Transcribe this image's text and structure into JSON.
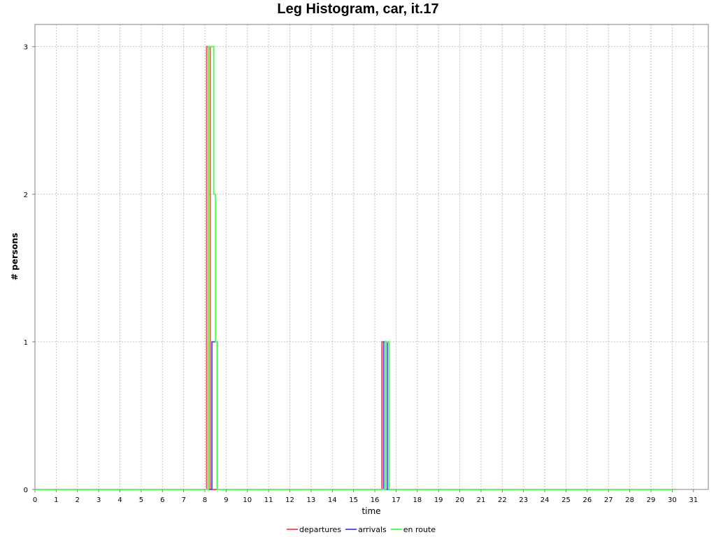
{
  "chart_data": {
    "type": "line",
    "title": "Leg Histogram, car, it.17",
    "xlabel": "time",
    "ylabel": "# persons",
    "xlim": [
      0,
      31.7
    ],
    "ylim": [
      0,
      3.15
    ],
    "x_ticks": [
      0,
      1,
      2,
      3,
      4,
      5,
      6,
      7,
      8,
      9,
      10,
      11,
      12,
      13,
      14,
      15,
      16,
      17,
      18,
      19,
      20,
      21,
      22,
      23,
      24,
      25,
      26,
      27,
      28,
      29,
      30,
      31
    ],
    "y_ticks": [
      0,
      1,
      2,
      3
    ],
    "grid": true,
    "legend_position": "bottom",
    "series": [
      {
        "name": "departures",
        "color": "#ff5555",
        "step": true,
        "points": [
          [
            0,
            0
          ],
          [
            8.083,
            0
          ],
          [
            8.083,
            3
          ],
          [
            8.25,
            3
          ],
          [
            8.25,
            0
          ],
          [
            16.333,
            0
          ],
          [
            16.333,
            1
          ],
          [
            16.667,
            1
          ],
          [
            16.667,
            0
          ],
          [
            30.15,
            0
          ]
        ]
      },
      {
        "name": "arrivals",
        "color": "#5555ff",
        "step": true,
        "points": [
          [
            0,
            0
          ],
          [
            8.333,
            0
          ],
          [
            8.333,
            1
          ],
          [
            8.583,
            1
          ],
          [
            8.583,
            0
          ],
          [
            16.417,
            0
          ],
          [
            16.417,
            1
          ],
          [
            16.583,
            1
          ],
          [
            16.583,
            0
          ],
          [
            30.15,
            0
          ]
        ]
      },
      {
        "name": "en route",
        "color": "#55ff55",
        "step": true,
        "points": [
          [
            0,
            0
          ],
          [
            8.167,
            0
          ],
          [
            8.167,
            3
          ],
          [
            8.417,
            3
          ],
          [
            8.417,
            2
          ],
          [
            8.5,
            2
          ],
          [
            8.5,
            1
          ],
          [
            8.583,
            1
          ],
          [
            8.583,
            0
          ],
          [
            16.5,
            0
          ],
          [
            16.5,
            1
          ],
          [
            16.667,
            1
          ],
          [
            16.667,
            0
          ],
          [
            30.15,
            0
          ]
        ]
      }
    ]
  }
}
